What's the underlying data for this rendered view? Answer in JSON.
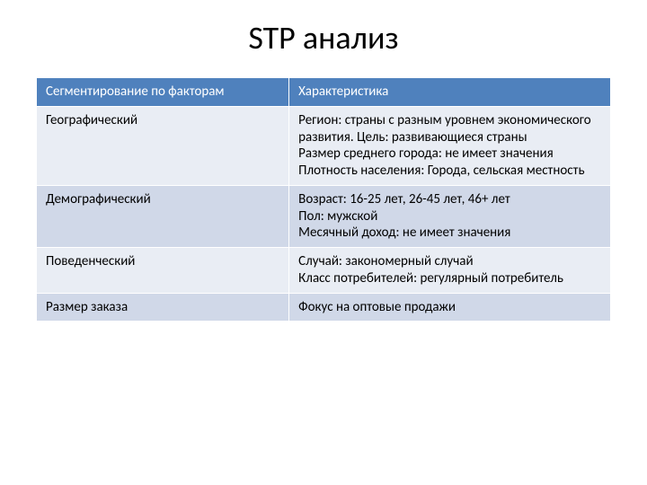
{
  "title": "STP анализ",
  "table": {
    "columns": [
      "Сегментирование по факторам",
      "Характеристика"
    ],
    "col_widths_pct": [
      44,
      56
    ],
    "header_bg": "#4f81bd",
    "header_text_color": "#ffffff",
    "row_band_colors": [
      "#e9edf4",
      "#d0d8e8"
    ],
    "border_color": "#ffffff",
    "font_size": 15,
    "rows": [
      {
        "factor": "Географический",
        "desc": "Регион: страны с разным уровнем экономического развития. Цель: развивающиеся страны\nРазмер среднего города: не имеет значения\nПлотность населения: Города, сельская местность"
      },
      {
        "factor": "Демографический",
        "desc": "Возраст: 16-25 лет, 26-45 лет, 46+ лет\nПол: мужской\nМесячный доход: не имеет значения"
      },
      {
        "factor": "Поведенческий",
        "desc": "Случай: закономерный случай\nКласс потребителей: регулярный потребитель"
      },
      {
        "factor": "Размер заказа",
        "desc": "Фокус на оптовые продажи"
      }
    ]
  },
  "background_color": "#ffffff",
  "title_fontsize": 36
}
